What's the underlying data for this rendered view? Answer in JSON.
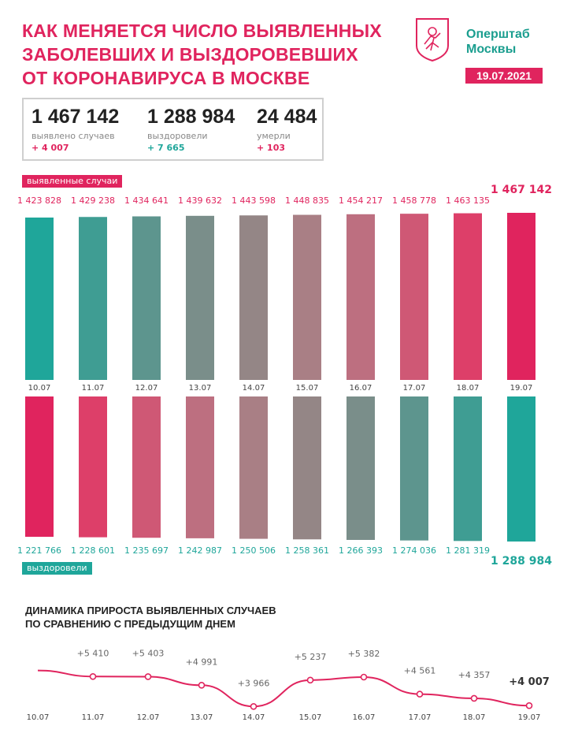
{
  "header": {
    "title_lines": [
      "КАК МЕНЯЕТСЯ ЧИСЛО ВЫЯВЛЕННЫХ",
      "ЗАБОЛЕВШИХ И ВЫЗДОРОВЕВШИХ",
      "ОТ КОРОНАВИРУСА В МОСКВЕ"
    ],
    "org_lines": [
      "Оперштаб",
      "Москвы"
    ],
    "date": "19.07.2021"
  },
  "stats": {
    "cases": {
      "value": "1 467 142",
      "label": "выявлено случаев",
      "delta": "+ 4 007"
    },
    "recovered": {
      "value": "1 288 984",
      "label": "выздоровели",
      "delta": "+ 7 665"
    },
    "deaths": {
      "value": "24 484",
      "label": "умерли",
      "delta": "+ 103"
    }
  },
  "colors": {
    "accent_pink": "#e0245e",
    "accent_teal": "#1fa69a",
    "line": "#e0245e"
  },
  "chart_data": [
    {
      "type": "bar",
      "categories": [
        "10.07",
        "11.07",
        "12.07",
        "13.07",
        "14.07",
        "15.07",
        "16.07",
        "17.07",
        "18.07",
        "19.07"
      ],
      "series": [
        {
          "name": "выявленные случаи",
          "values": [
            1423828,
            1429238,
            1434641,
            1439632,
            1443598,
            1448835,
            1454217,
            1458778,
            1463135,
            1467142
          ]
        }
      ],
      "labels": [
        "1 423 828",
        "1 429 238",
        "1 434 641",
        "1 439 632",
        "1 443 598",
        "1 448 835",
        "1 454 217",
        "1 458 778",
        "1 463 135",
        "1 467 142"
      ],
      "bar_colors": [
        "#1fa69a",
        "#3f9d93",
        "#5d958e",
        "#7a8e8a",
        "#948686",
        "#a97f85",
        "#bd6f80",
        "#cf5875",
        "#dd3f69",
        "#e0245e"
      ]
    },
    {
      "type": "bar",
      "categories": [
        "10.07",
        "11.07",
        "12.07",
        "13.07",
        "14.07",
        "15.07",
        "16.07",
        "17.07",
        "18.07",
        "19.07"
      ],
      "series": [
        {
          "name": "выздоровели",
          "values": [
            1221766,
            1228601,
            1235697,
            1242987,
            1250506,
            1258361,
            1266393,
            1274036,
            1281319,
            1288984
          ]
        }
      ],
      "labels": [
        "1 221 766",
        "1 228 601",
        "1 235 697",
        "1 242 987",
        "1 250 506",
        "1 258 361",
        "1 266 393",
        "1 274 036",
        "1 281 319",
        "1 288 984"
      ],
      "bar_colors": [
        "#e0245e",
        "#dd3f69",
        "#cf5875",
        "#bd6f80",
        "#a97f85",
        "#948686",
        "#7a8e8a",
        "#5d958e",
        "#3f9d93",
        "#1fa69a"
      ]
    },
    {
      "type": "line",
      "title_lines": [
        "ДИНАМИКА ПРИРОСТА ВЫЯВЛЕННЫХ СЛУЧАЕВ",
        "ПО СРАВНЕНИЮ С ПРЕДЫДУЩИМ ДНЕМ"
      ],
      "x": [
        "10.07",
        "11.07",
        "12.07",
        "13.07",
        "14.07",
        "15.07",
        "16.07",
        "17.07",
        "18.07",
        "19.07"
      ],
      "values": [
        5700,
        5410,
        5403,
        4991,
        3966,
        5237,
        5382,
        4561,
        4357,
        4007
      ],
      "labels": [
        "",
        "+5 410",
        "+5 403",
        "+4 991",
        "+3 966",
        "+5 237",
        "+5 382",
        "+4 561",
        "+4 357",
        "+4 007"
      ]
    }
  ]
}
